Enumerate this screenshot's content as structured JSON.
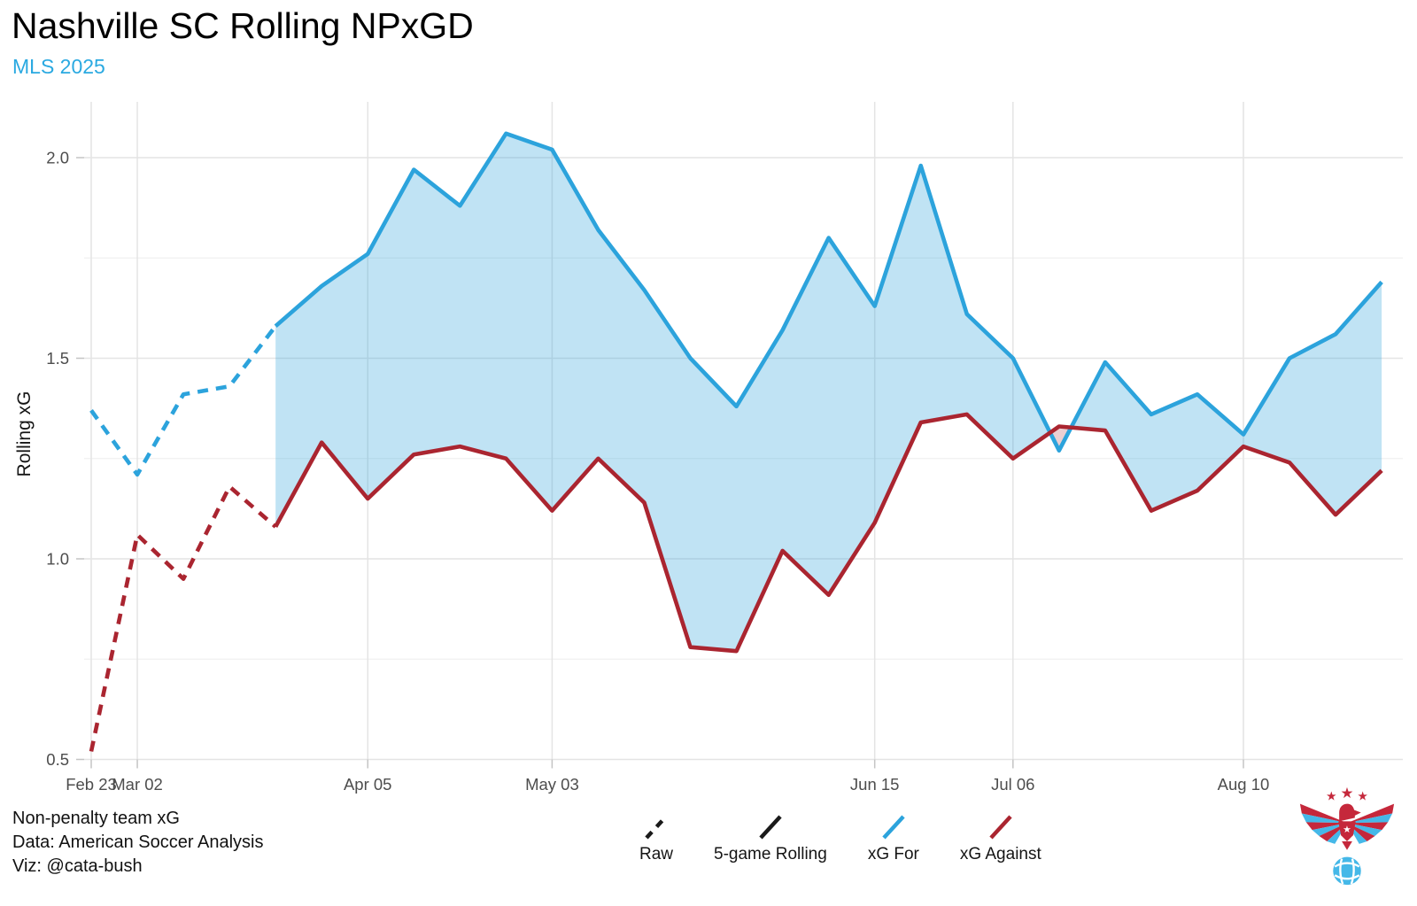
{
  "header": {
    "title": "Nashville SC Rolling NPxGD",
    "subtitle": "MLS 2025",
    "subtitle_color": "#2AA9E1"
  },
  "footer": {
    "line1": "Non-penalty team xG",
    "line2": "Data: American Soccer Analysis",
    "line3": "Viz: @cata-bush"
  },
  "legend": {
    "items": [
      {
        "label": "Raw",
        "color": "#1a1a1a",
        "style": "dashed"
      },
      {
        "label": "5-game Rolling",
        "color": "#1a1a1a",
        "style": "solid"
      },
      {
        "label": "xG For",
        "color": "#2CA3DC",
        "style": "solid"
      },
      {
        "label": "xG Against",
        "color": "#AA2530",
        "style": "solid"
      }
    ]
  },
  "colors": {
    "line_blue": "#2CA3DC",
    "line_red": "#AA2530",
    "fill_blue": "rgba(47,163,220,0.30)",
    "fill_red": "rgba(170,37,48,0.22)",
    "grid_major": "#e4e4e4",
    "grid_minor": "#f0f0f0",
    "tick_mark": "#c4c4c4",
    "axis_text": "#4d4d4d"
  },
  "chart_data": {
    "type": "line",
    "title": "Nashville SC Rolling NPxGD",
    "subtitle": "MLS 2025",
    "xlabel": "",
    "ylabel": "Rolling xG",
    "ylim": [
      0.45,
      2.15
    ],
    "grid": true,
    "legend_position": "bottom",
    "x_description": "match index 1-29; first 5 matches drawn dashed (raw burn-in), solid 5-game rolling from match 5",
    "x": [
      1,
      2,
      3,
      4,
      5,
      6,
      7,
      8,
      9,
      10,
      11,
      12,
      13,
      14,
      15,
      16,
      17,
      18,
      19,
      20,
      21,
      22,
      23,
      24,
      25,
      26,
      27,
      28,
      29
    ],
    "dashed_through_x": 5,
    "series": [
      {
        "name": "xG For",
        "color": "#2CA3DC",
        "values": [
          1.37,
          1.21,
          1.41,
          1.43,
          1.58,
          1.68,
          1.76,
          1.97,
          1.88,
          2.06,
          2.02,
          1.82,
          1.67,
          1.5,
          1.38,
          1.57,
          1.8,
          1.63,
          1.98,
          1.61,
          1.5,
          1.27,
          1.49,
          1.36,
          1.41,
          1.31,
          1.5,
          1.56,
          1.69
        ]
      },
      {
        "name": "xG Against",
        "color": "#AA2530",
        "values": [
          0.52,
          1.06,
          0.95,
          1.18,
          1.08,
          1.29,
          1.15,
          1.26,
          1.28,
          1.25,
          1.12,
          1.25,
          1.14,
          0.78,
          0.77,
          1.02,
          0.91,
          1.09,
          1.34,
          1.36,
          1.25,
          1.33,
          1.32,
          1.12,
          1.17,
          1.28,
          1.24,
          1.11,
          1.22
        ]
      }
    ],
    "x_ticks": [
      {
        "x": 1,
        "label": "Feb 23"
      },
      {
        "x": 2,
        "label": "Mar 02"
      },
      {
        "x": 7,
        "label": "Apr 05"
      },
      {
        "x": 11,
        "label": "May 03"
      },
      {
        "x": 18,
        "label": "Jun 15"
      },
      {
        "x": 21,
        "label": "Jul 06"
      },
      {
        "x": 26,
        "label": "Aug 10"
      }
    ],
    "y_ticks": [
      {
        "v": 0.5,
        "label": "0.5"
      },
      {
        "v": 1.0,
        "label": "1.0"
      },
      {
        "v": 1.5,
        "label": "1.5"
      },
      {
        "v": 2.0,
        "label": "2.0"
      }
    ],
    "y_minor": [
      0.75,
      1.25,
      1.75
    ]
  }
}
